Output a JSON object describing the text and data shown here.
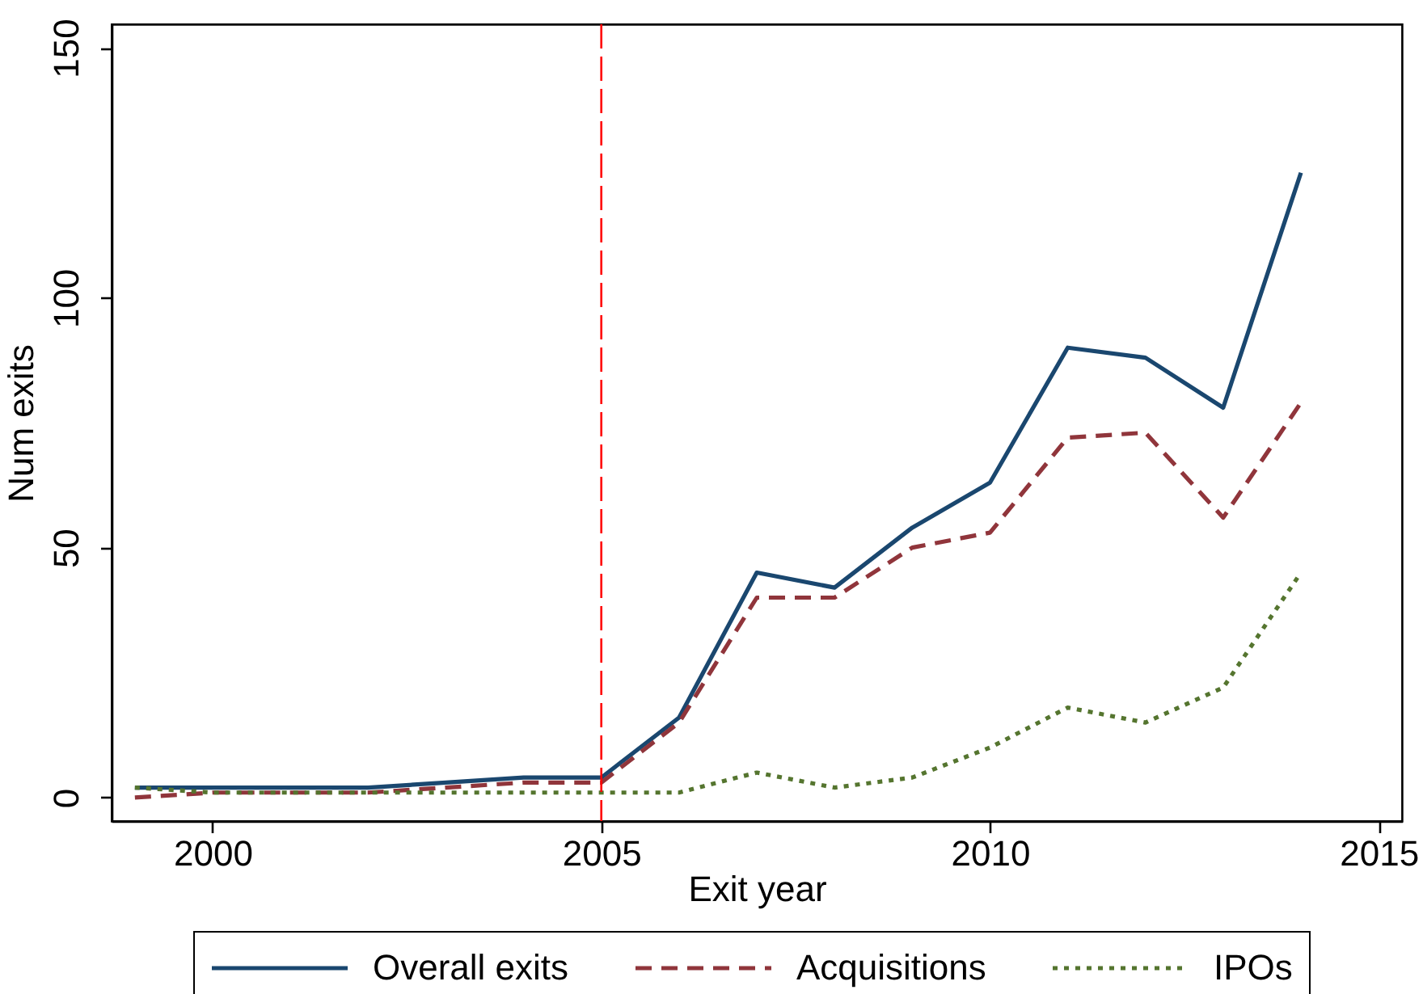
{
  "chart_data": {
    "type": "line",
    "xlabel": "Exit year",
    "ylabel": "Num exits",
    "x": [
      1999,
      2000,
      2001,
      2002,
      2003,
      2004,
      2005,
      2006,
      2007,
      2008,
      2009,
      2010,
      2011,
      2012,
      2013,
      2014
    ],
    "xlim": [
      1998.7,
      2015.3
    ],
    "xticks": [
      2000,
      2005,
      2010,
      2015
    ],
    "ylim": [
      -4.7,
      154.7
    ],
    "yticks": [
      0,
      50,
      100,
      150
    ],
    "grid": false,
    "legend": "bottom",
    "series": [
      {
        "name": "Overall exits",
        "color": "#1a476f",
        "line_style": "solid",
        "values": [
          2,
          2,
          2,
          2,
          3,
          4,
          4,
          16,
          45,
          42,
          54,
          63,
          90,
          88,
          78,
          125
        ]
      },
      {
        "name": "Acquisitions",
        "color": "#90353b",
        "line_style": "dashed",
        "values": [
          0,
          1,
          1,
          1,
          2,
          3,
          3,
          15,
          40,
          40,
          50,
          53,
          72,
          73,
          56,
          79
        ]
      },
      {
        "name": "IPOs",
        "color": "#55752f",
        "line_style": "dotted",
        "values": [
          2,
          1,
          1,
          1,
          1,
          1,
          1,
          1,
          5,
          2,
          4,
          10,
          18,
          15,
          22,
          45
        ]
      }
    ],
    "ref_lines": [
      {
        "axis": "x",
        "value": 2005,
        "color": "#ff0000",
        "line_style": "dashed"
      }
    ]
  }
}
